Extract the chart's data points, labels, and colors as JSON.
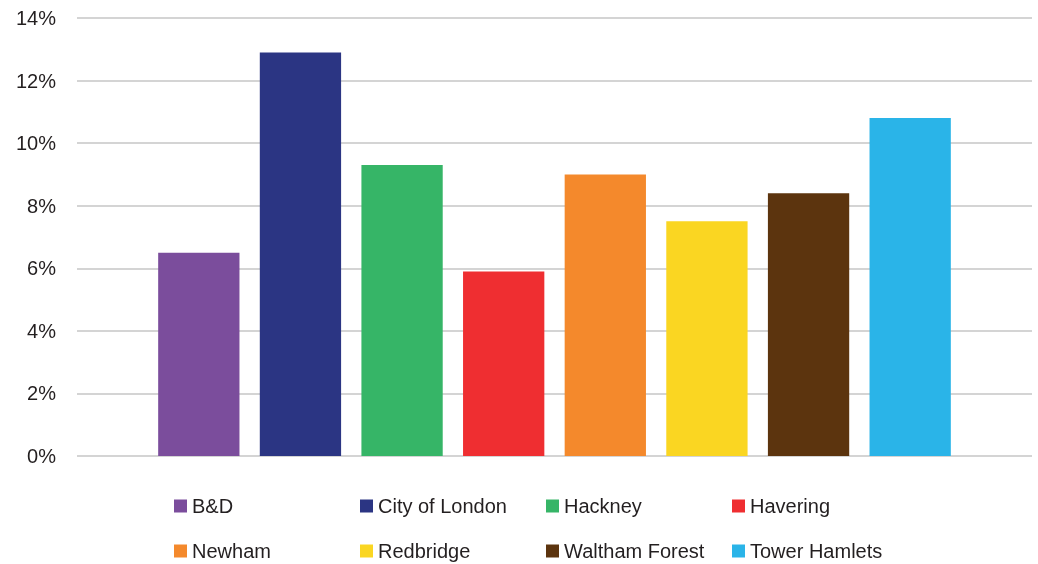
{
  "chart_data": {
    "type": "bar",
    "categories": [
      null
    ],
    "series": [
      {
        "name": "B&D",
        "color": "#7b4d9c",
        "values": [
          6.5
        ]
      },
      {
        "name": "City of London",
        "color": "#2b3583",
        "values": [
          12.9
        ]
      },
      {
        "name": "Hackney",
        "color": "#36b567",
        "values": [
          9.3
        ]
      },
      {
        "name": "Havering",
        "color": "#ef2e31",
        "values": [
          5.9
        ]
      },
      {
        "name": "Newham",
        "color": "#f4892c",
        "values": [
          9.0
        ]
      },
      {
        "name": "Redbridge",
        "color": "#fad622",
        "values": [
          7.5
        ]
      },
      {
        "name": "Waltham Forest",
        "color": "#5c340e",
        "values": [
          8.4
        ]
      },
      {
        "name": "Tower Hamlets",
        "color": "#2ab4e8",
        "values": [
          10.8
        ]
      }
    ],
    "ylim": [
      0,
      14
    ],
    "yticks": [
      {
        "value": 0,
        "label": "0%"
      },
      {
        "value": 2,
        "label": "2%"
      },
      {
        "value": 4,
        "label": "4%"
      },
      {
        "value": 6,
        "label": "6%"
      },
      {
        "value": 8,
        "label": "8%"
      },
      {
        "value": 10,
        "label": "10%"
      },
      {
        "value": 12,
        "label": "12%"
      },
      {
        "value": 14,
        "label": "14%"
      }
    ],
    "grid": "y",
    "legend": "bottom"
  }
}
